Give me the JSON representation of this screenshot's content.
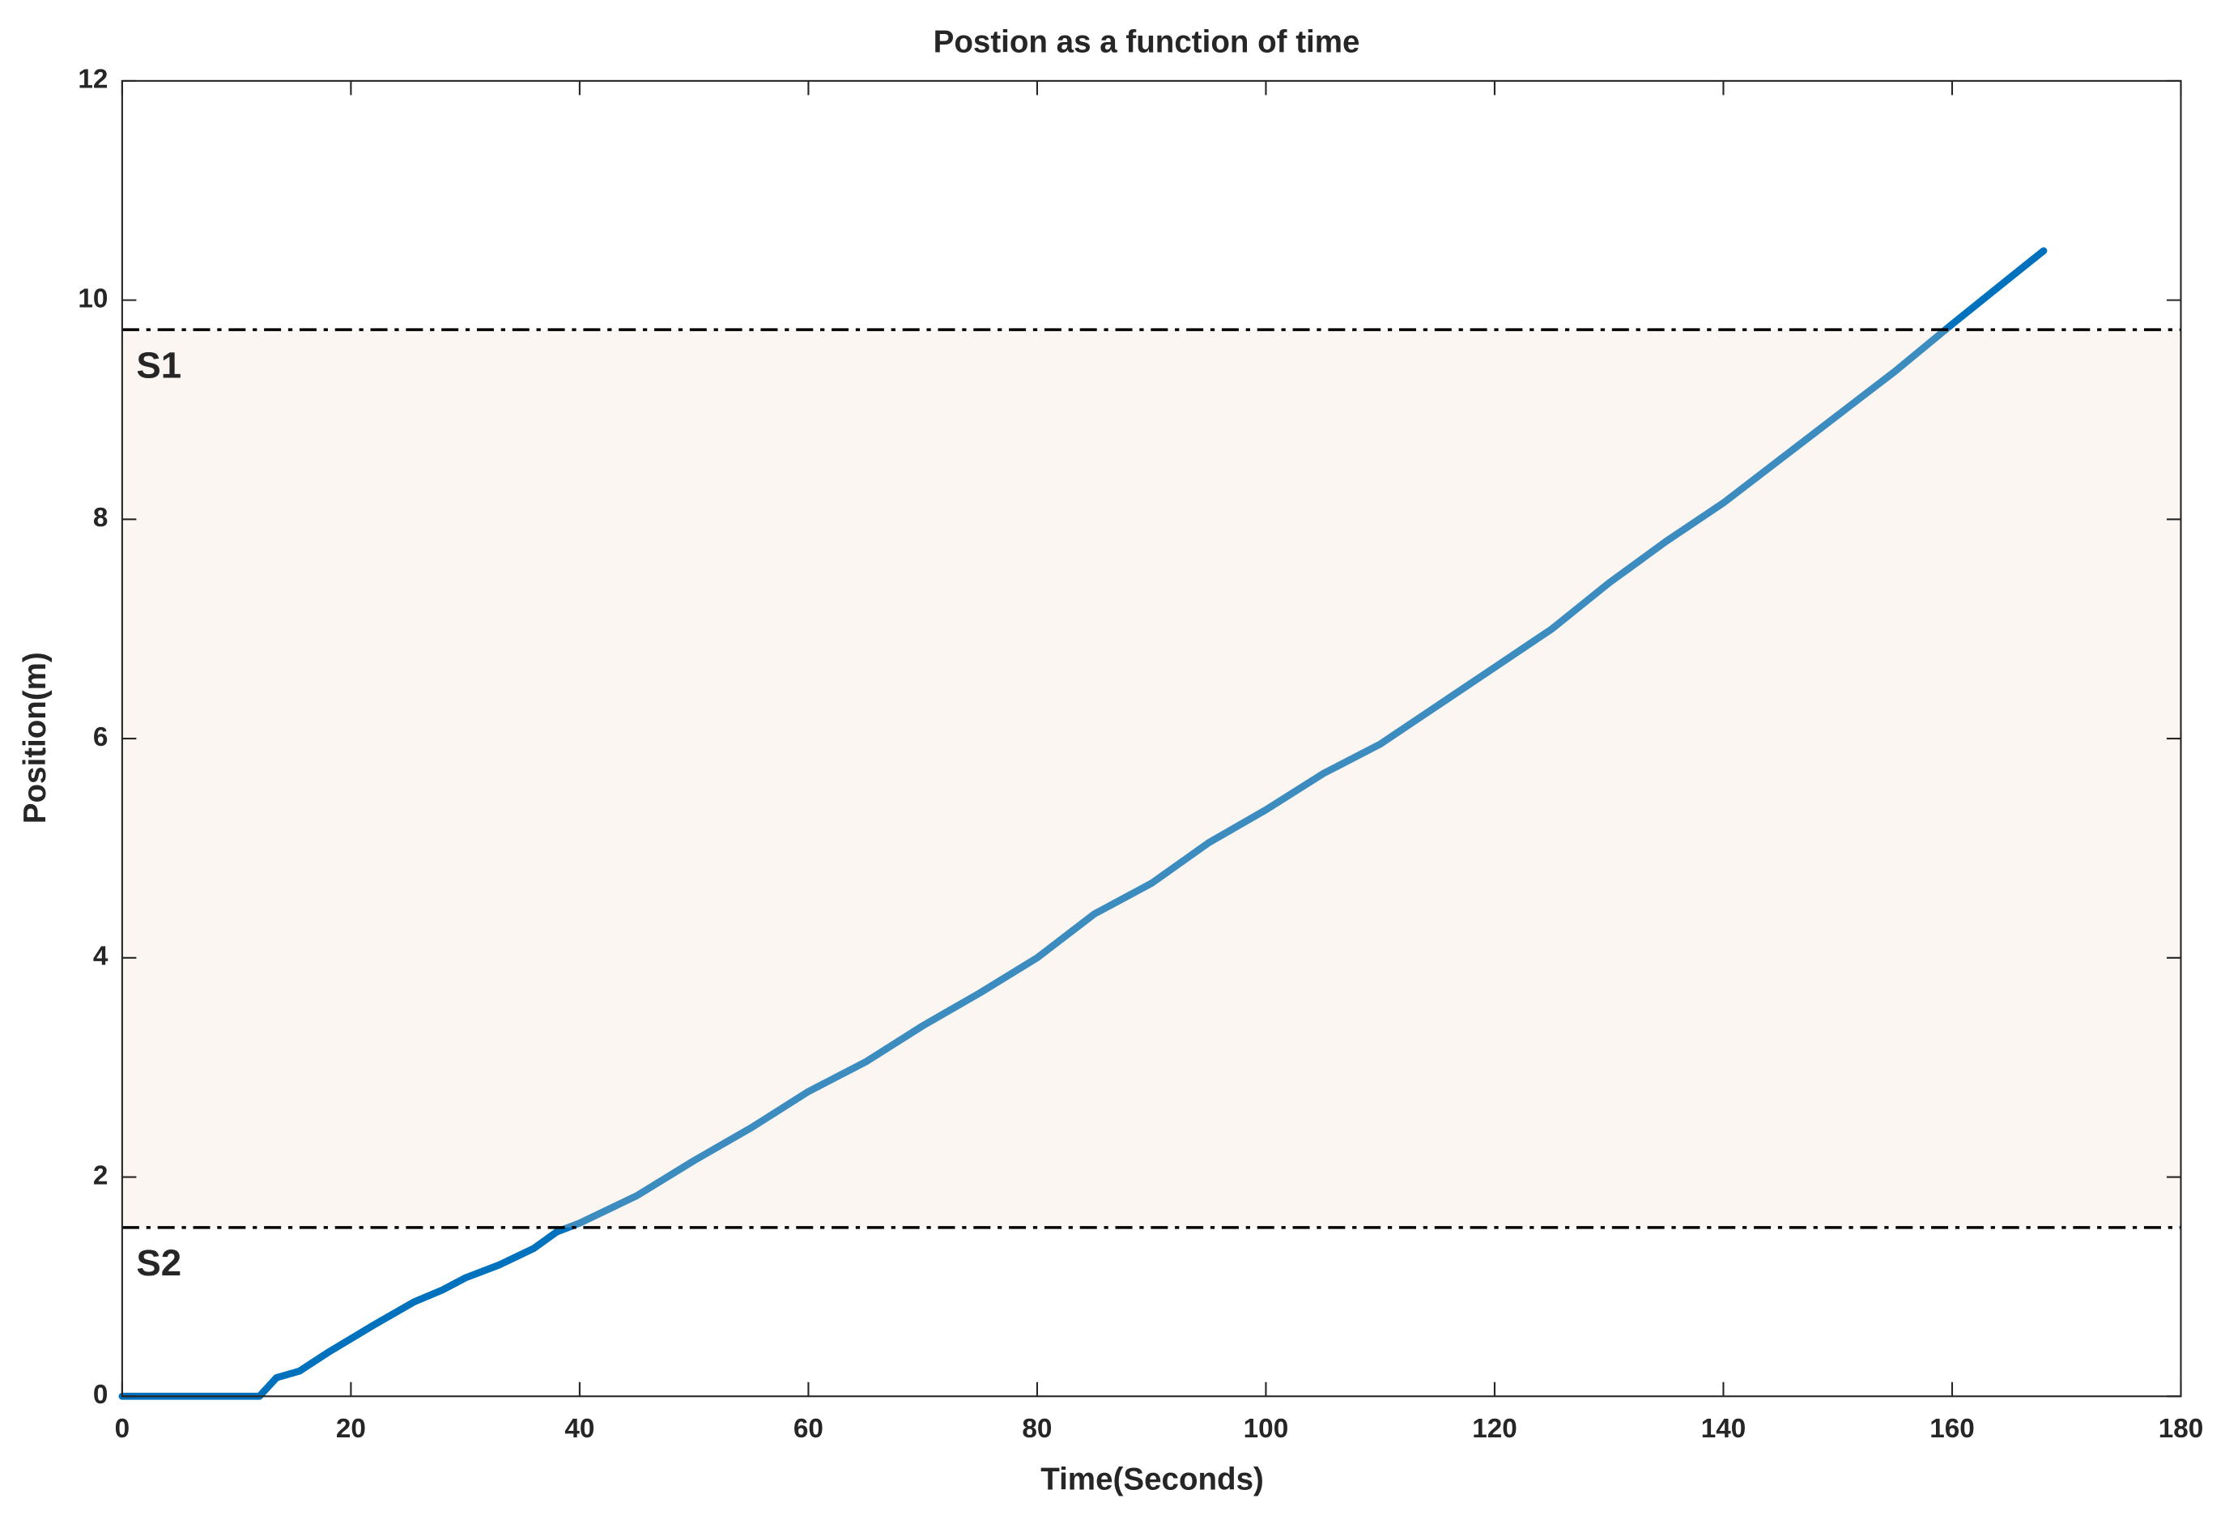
{
  "chart_data": {
    "type": "line",
    "title": "Postion as a function of time",
    "xlabel": "Time(Seconds)",
    "ylabel": "Position(m)",
    "x": [
      0,
      12,
      13.5,
      15.5,
      18,
      22,
      25.5,
      28,
      30,
      33,
      36,
      38,
      40,
      45,
      50,
      55,
      60,
      65,
      70,
      75,
      80,
      85,
      90,
      95,
      100,
      105,
      110,
      115,
      120,
      125,
      130,
      135,
      140,
      145,
      150,
      155,
      160,
      165,
      168
    ],
    "series": [
      {
        "color": "#0072bd",
        "values": [
          0,
          0,
          0.17,
          0.23,
          0.4,
          0.65,
          0.86,
          0.97,
          1.08,
          1.2,
          1.35,
          1.5,
          1.58,
          1.83,
          2.15,
          2.45,
          2.78,
          3.05,
          3.38,
          3.68,
          4.0,
          4.4,
          4.68,
          5.05,
          5.35,
          5.68,
          5.95,
          6.3,
          6.65,
          7.0,
          7.42,
          7.8,
          8.15,
          8.55,
          8.95,
          9.35,
          9.78,
          10.2,
          10.45
        ]
      }
    ],
    "hlines": [
      {
        "label": "S1",
        "value": 9.73,
        "color": "#000000"
      },
      {
        "label": "S2",
        "value": 1.54,
        "color": "#000000"
      }
    ],
    "band_color": "#f0dccd",
    "xlim": [
      0,
      180
    ],
    "xticks": [
      0,
      20,
      40,
      60,
      80,
      100,
      120,
      140,
      160,
      180
    ],
    "ylim": [
      0,
      12
    ],
    "yticks": [
      0,
      2,
      4,
      6,
      8,
      10,
      12
    ],
    "grid": false
  }
}
